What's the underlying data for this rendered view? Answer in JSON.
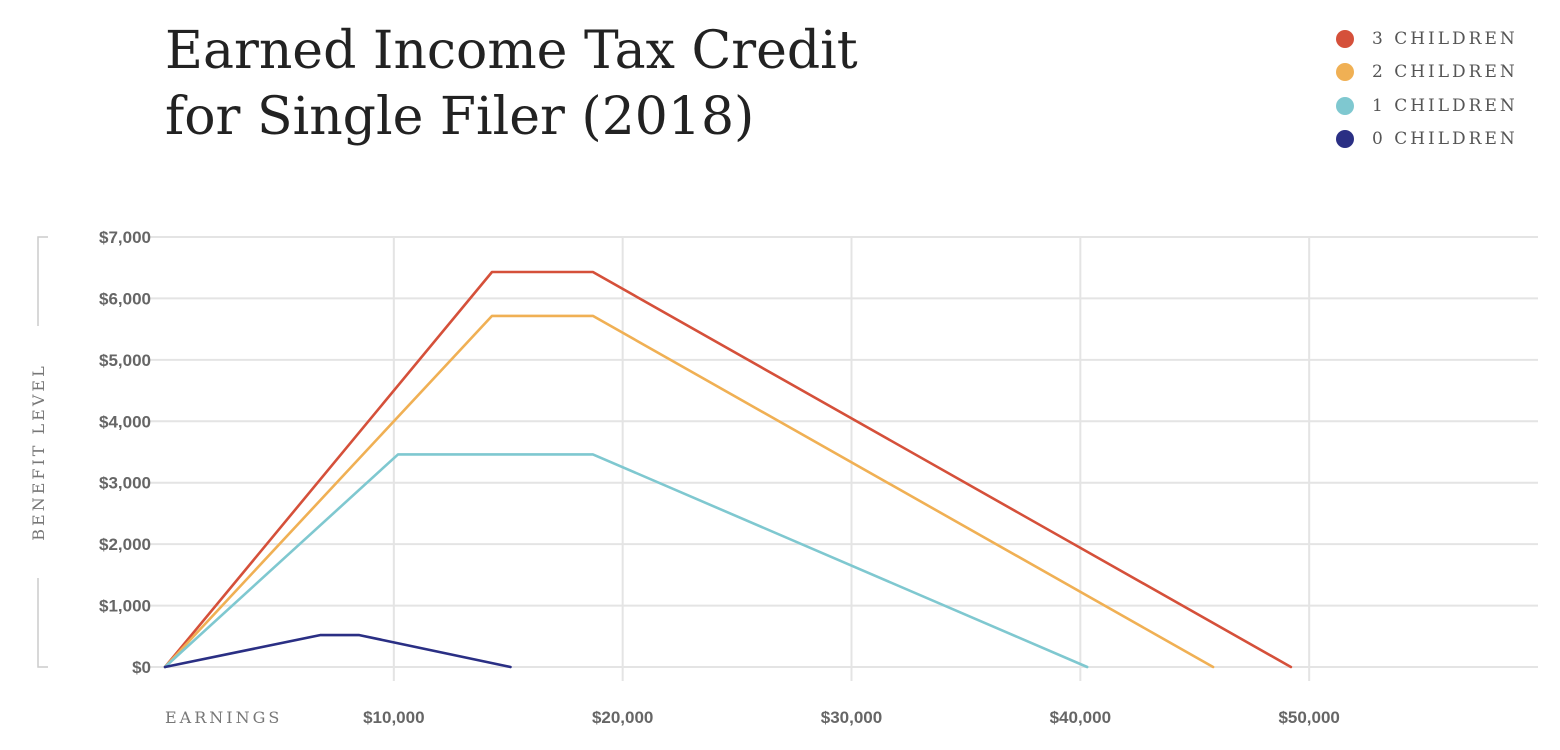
{
  "header": {
    "title_line1": "Earned Income Tax Credit",
    "title_line2": "for Single Filer (2018)"
  },
  "legend": {
    "items": [
      {
        "label": "3 CHILDREN",
        "color": "#d5503a"
      },
      {
        "label": "2 CHILDREN",
        "color": "#f0b054"
      },
      {
        "label": "1 CHILDREN",
        "color": "#7fc8d0"
      },
      {
        "label": "0 CHILDREN",
        "color": "#2a2f84"
      }
    ]
  },
  "chart_data": {
    "type": "line",
    "title": "Earned Income Tax Credit for Single Filer (2018)",
    "xlabel": "EARNINGS",
    "ylabel": "BENEFIT LEVEL",
    "xlim": [
      0,
      60000
    ],
    "ylim": [
      0,
      7000
    ],
    "grid": true,
    "legend_position": "top-right",
    "x_ticks": [
      10000,
      20000,
      30000,
      40000,
      50000
    ],
    "x_tick_labels": [
      "$10,000",
      "$20,000",
      "$30,000",
      "$40,000",
      "$50,000"
    ],
    "y_ticks": [
      0,
      1000,
      2000,
      3000,
      4000,
      5000,
      6000,
      7000
    ],
    "y_tick_labels": [
      "$0",
      "$1,000",
      "$2,000",
      "$3,000",
      "$4,000",
      "$5,000",
      "$6,000",
      "$7,000"
    ],
    "series": [
      {
        "name": "3 CHILDREN",
        "color": "#d5503a",
        "x": [
          0,
          14290,
          18700,
          49200
        ],
        "y": [
          0,
          6431,
          6431,
          0
        ]
      },
      {
        "name": "2 CHILDREN",
        "color": "#f0b054",
        "x": [
          0,
          14290,
          18700,
          45800
        ],
        "y": [
          0,
          5716,
          5716,
          0
        ]
      },
      {
        "name": "1 CHILDREN",
        "color": "#7fc8d0",
        "x": [
          0,
          10180,
          18700,
          40300
        ],
        "y": [
          0,
          3461,
          3461,
          0
        ]
      },
      {
        "name": "0 CHILDREN",
        "color": "#2a2f84",
        "x": [
          0,
          6780,
          8490,
          15100
        ],
        "y": [
          0,
          519,
          519,
          0
        ]
      }
    ]
  }
}
